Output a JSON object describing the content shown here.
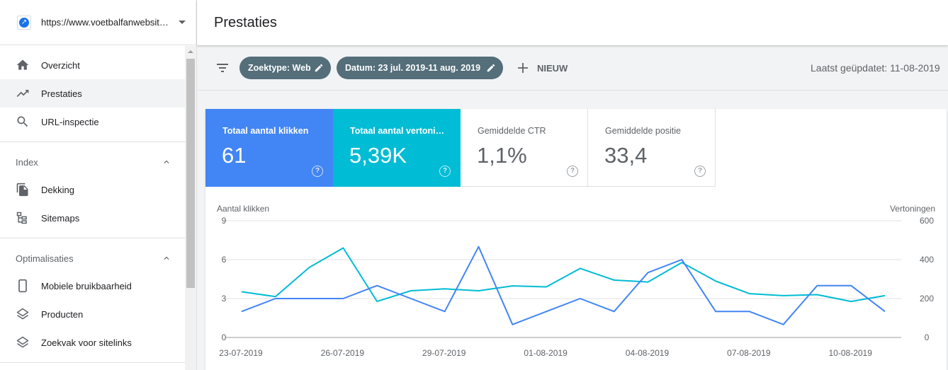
{
  "property": {
    "url": "https://www.voetbalfanwebsite.nl"
  },
  "nav": {
    "overzicht": "Overzicht",
    "prestaties": "Prestaties",
    "url_inspectie": "URL-inspectie",
    "index_header": "Index",
    "dekking": "Dekking",
    "sitemaps": "Sitemaps",
    "optimalisaties_header": "Optimalisaties",
    "mobiele": "Mobiele bruikbaarheid",
    "producten": "Producten",
    "zoekvak": "Zoekvak voor sitelinks"
  },
  "header": {
    "title": "Prestaties"
  },
  "filters": {
    "chip_search_type": "Zoektype: Web",
    "chip_date": "Datum: 23 jul. 2019-11 aug. 2019",
    "new_label": "NIEUW",
    "last_updated": "Laatst geüpdatet: 11-08-2019"
  },
  "metrics": {
    "clicks_label": "Totaal aantal klikken",
    "clicks_value": "61",
    "impressions_label": "Totaal aantal vertoningen",
    "impressions_value": "5,39K",
    "ctr_label": "Gemiddelde CTR",
    "ctr_value": "1,1%",
    "position_label": "Gemiddelde positie",
    "position_value": "33,4",
    "help_glyph": "?"
  },
  "colors": {
    "clicks": "#4285f4",
    "impressions": "#00bcd4",
    "chip": "#546e7a"
  },
  "chart_data": {
    "type": "line",
    "y_left_label": "Aantal klikken",
    "y_right_label": "Vertoningen",
    "y_left_ticks": [
      "0",
      "3",
      "6",
      "9"
    ],
    "y_right_ticks": [
      "0",
      "200",
      "400",
      "600"
    ],
    "ylim_left": [
      0,
      9
    ],
    "ylim_right": [
      0,
      600
    ],
    "x_tick_labels": [
      "23-07-2019",
      "26-07-2019",
      "29-07-2019",
      "01-08-2019",
      "04-08-2019",
      "07-08-2019",
      "10-08-2019"
    ],
    "x_tick_indices": [
      0,
      3,
      6,
      9,
      12,
      15,
      18
    ],
    "x": [
      "23-07-2019",
      "24-07-2019",
      "25-07-2019",
      "26-07-2019",
      "27-07-2019",
      "28-07-2019",
      "29-07-2019",
      "30-07-2019",
      "31-07-2019",
      "01-08-2019",
      "02-08-2019",
      "03-08-2019",
      "04-08-2019",
      "05-08-2019",
      "06-08-2019",
      "07-08-2019",
      "08-08-2019",
      "09-08-2019",
      "10-08-2019",
      "11-08-2019"
    ],
    "series": [
      {
        "name": "Aantal klikken",
        "axis": "left",
        "values": [
          2,
          3,
          3,
          3,
          4,
          3,
          2,
          7,
          1,
          2,
          3,
          2,
          5,
          6,
          2,
          2,
          1,
          4,
          4,
          2
        ]
      },
      {
        "name": "Vertoningen",
        "axis": "right",
        "values": [
          235,
          210,
          360,
          460,
          185,
          240,
          250,
          240,
          265,
          260,
          355,
          295,
          285,
          385,
          290,
          225,
          215,
          220,
          185,
          215
        ]
      }
    ],
    "grid": true
  }
}
